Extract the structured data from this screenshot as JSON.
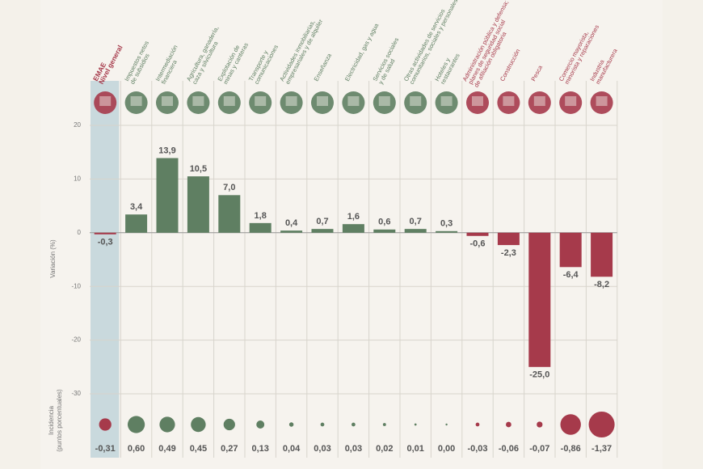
{
  "chart_data": {
    "type": "bar",
    "categories": [
      [
        "EMAE",
        "Nivel general"
      ],
      [
        "Impuestos netos",
        "de subsidios"
      ],
      [
        "Intermediación",
        "financiera"
      ],
      [
        "Agricultura, ganadería,",
        "caza y silvicultura"
      ],
      [
        "Explotación de",
        "minas y canteras"
      ],
      [
        "Transporte y",
        "comunicaciones"
      ],
      [
        "Actividades inmobiliarias,",
        "empresariales y de alquiler"
      ],
      [
        "Enseñanza"
      ],
      [
        "Electricidad, gas y agua"
      ],
      [
        "Servicios sociales",
        "y de salud"
      ],
      [
        "Otras actividades de servicios",
        "comunitarios, sociales y personales"
      ],
      [
        "Hoteles y",
        "restaurantes"
      ],
      [
        "Administración pública y defensa;",
        "planes de seguridad social",
        "de afiliación obligatoria"
      ],
      [
        "Construcción"
      ],
      [
        "Pesca"
      ],
      [
        "Comercio mayorista,",
        "minorista y reparaciones"
      ],
      [
        "Industria",
        "manufacturera"
      ]
    ],
    "values": [
      -0.3,
      3.4,
      13.9,
      10.5,
      7.0,
      1.8,
      0.4,
      0.7,
      1.6,
      0.6,
      0.7,
      0.3,
      -0.6,
      -2.3,
      -25.0,
      -6.4,
      -8.2
    ],
    "value_labels": [
      "-0,3",
      "3,4",
      "13,9",
      "10,5",
      "7,0",
      "1,8",
      "0,4",
      "0,7",
      "1,6",
      "0,6",
      "0,7",
      "0,3",
      "-0,6",
      "-2,3",
      "-25,0",
      "-6,4",
      "-8,2"
    ],
    "incidence": [
      -0.31,
      0.6,
      0.49,
      0.45,
      0.27,
      0.13,
      0.04,
      0.03,
      0.03,
      0.02,
      0.01,
      0.0,
      -0.03,
      -0.06,
      -0.07,
      -0.86,
      -1.37
    ],
    "incidence_labels": [
      "-0,31",
      "0,60",
      "0,49",
      "0,45",
      "0,27",
      "0,13",
      "0,04",
      "0,03",
      "0,03",
      "0,02",
      "0,01",
      "0,00",
      "-0,03",
      "-0,06",
      "-0,07",
      "-0,86",
      "-1,37"
    ],
    "y_label": "Variación (%)",
    "incidence_label": [
      "Incidencia",
      "(puntos porcentuales)"
    ],
    "ylim": [
      -30,
      20
    ],
    "yticks": [
      20,
      10,
      0,
      -10,
      -20,
      -30
    ],
    "grid": true,
    "positive_color": "#5f7f62",
    "negative_color": "#a63a4b",
    "highlight_color": "#c9d9dd"
  }
}
